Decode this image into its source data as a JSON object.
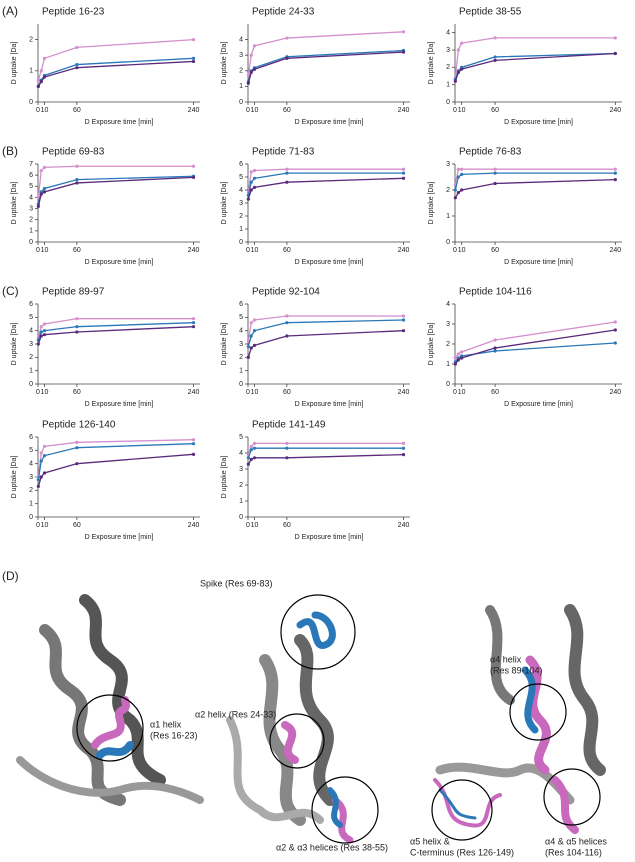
{
  "panel_labels": [
    "(A)",
    "(B)",
    "(C)",
    "(D)"
  ],
  "chart_data": [
    {
      "type": "line",
      "title": "Peptide 16-23",
      "xlabel": "D Exposure time [min]",
      "ylabel": "D uptake [Da]",
      "x": [
        0.5,
        5,
        10,
        60,
        240
      ],
      "xlim": [
        0,
        250
      ],
      "xticks": [
        0,
        10,
        60,
        240
      ],
      "ylim": [
        0,
        2.5
      ],
      "yticks": [
        0,
        1,
        2
      ],
      "series": [
        {
          "color": "#d48fcc",
          "values": [
            0.7,
            1.0,
            1.4,
            1.75,
            2.0
          ]
        },
        {
          "color": "#2a78b8",
          "values": [
            0.5,
            0.7,
            0.85,
            1.2,
            1.4
          ]
        },
        {
          "color": "#5a2a7c",
          "values": [
            0.5,
            0.65,
            0.8,
            1.1,
            1.3
          ]
        }
      ]
    },
    {
      "type": "line",
      "title": "Peptide 24-33",
      "xlabel": "D Exposure time [min]",
      "ylabel": "D uptake [Da]",
      "x": [
        0.5,
        5,
        10,
        60,
        240
      ],
      "xlim": [
        0,
        250
      ],
      "xticks": [
        0,
        10,
        60,
        240
      ],
      "ylim": [
        0,
        5
      ],
      "yticks": [
        0,
        1,
        2,
        3,
        4
      ],
      "series": [
        {
          "color": "#d48fcc",
          "values": [
            1.7,
            3.0,
            3.6,
            4.1,
            4.5
          ]
        },
        {
          "color": "#2a78b8",
          "values": [
            1.3,
            2.0,
            2.2,
            2.9,
            3.3
          ]
        },
        {
          "color": "#5a2a7c",
          "values": [
            1.2,
            1.9,
            2.1,
            2.8,
            3.2
          ]
        }
      ]
    },
    {
      "type": "line",
      "title": "Peptide 38-55",
      "xlabel": "D Exposure time [min]",
      "ylabel": "D uptake [Da]",
      "x": [
        0.5,
        5,
        10,
        60,
        240
      ],
      "xlim": [
        0,
        250
      ],
      "xticks": [
        0,
        10,
        60,
        240
      ],
      "ylim": [
        0,
        4.5
      ],
      "yticks": [
        0,
        1,
        2,
        3,
        4
      ],
      "series": [
        {
          "color": "#d48fcc",
          "values": [
            1.4,
            3.0,
            3.4,
            3.7,
            3.7
          ]
        },
        {
          "color": "#2a78b8",
          "values": [
            1.3,
            1.8,
            2.0,
            2.6,
            2.8
          ]
        },
        {
          "color": "#5a2a7c",
          "values": [
            1.2,
            1.7,
            1.9,
            2.4,
            2.8
          ]
        }
      ]
    },
    {
      "type": "line",
      "title": "Peptide 69-83",
      "xlabel": "D Exposure time [min]",
      "ylabel": "D uptake [Da]",
      "x": [
        0.5,
        5,
        10,
        60,
        240
      ],
      "xlim": [
        0,
        250
      ],
      "xticks": [
        0,
        10,
        60,
        240
      ],
      "ylim": [
        0,
        7
      ],
      "yticks": [
        0,
        1,
        2,
        3,
        4,
        5,
        6,
        7
      ],
      "series": [
        {
          "color": "#d48fcc",
          "values": [
            4.0,
            6.4,
            6.7,
            6.8,
            6.8
          ]
        },
        {
          "color": "#2a78b8",
          "values": [
            3.4,
            4.5,
            4.8,
            5.6,
            5.9
          ]
        },
        {
          "color": "#5a2a7c",
          "values": [
            3.2,
            4.3,
            4.5,
            5.3,
            5.8
          ]
        }
      ]
    },
    {
      "type": "line",
      "title": "Peptide 71-83",
      "xlabel": "D Exposure time [min]",
      "ylabel": "D uptake [Da]",
      "x": [
        0.5,
        5,
        10,
        60,
        240
      ],
      "xlim": [
        0,
        250
      ],
      "xticks": [
        0,
        10,
        60,
        240
      ],
      "ylim": [
        0,
        6
      ],
      "yticks": [
        0,
        1,
        2,
        3,
        4,
        5,
        6
      ],
      "series": [
        {
          "color": "#d48fcc",
          "values": [
            3.8,
            5.4,
            5.5,
            5.6,
            5.6
          ]
        },
        {
          "color": "#2a78b8",
          "values": [
            3.6,
            4.6,
            4.9,
            5.3,
            5.3
          ]
        },
        {
          "color": "#5a2a7c",
          "values": [
            3.3,
            4.0,
            4.2,
            4.6,
            4.9
          ]
        }
      ]
    },
    {
      "type": "line",
      "title": "Peptide 76-83",
      "xlabel": "D Exposure time [min]",
      "ylabel": "D uptake [Da]",
      "x": [
        0.5,
        5,
        10,
        60,
        240
      ],
      "xlim": [
        0,
        250
      ],
      "xticks": [
        0,
        10,
        60,
        240
      ],
      "ylim": [
        0,
        3
      ],
      "yticks": [
        0,
        1,
        2,
        3
      ],
      "series": [
        {
          "color": "#d48fcc",
          "values": [
            2.2,
            2.8,
            2.8,
            2.8,
            2.8
          ]
        },
        {
          "color": "#2a78b8",
          "values": [
            2.0,
            2.5,
            2.6,
            2.65,
            2.65
          ]
        },
        {
          "color": "#5a2a7c",
          "values": [
            1.7,
            1.9,
            2.0,
            2.25,
            2.4
          ]
        }
      ]
    },
    {
      "type": "line",
      "title": "Peptide 89-97",
      "xlabel": "D Exposure time [min]",
      "ylabel": "D uptake [Da]",
      "x": [
        0.5,
        5,
        10,
        60,
        240
      ],
      "xlim": [
        0,
        250
      ],
      "xticks": [
        0,
        10,
        60,
        240
      ],
      "ylim": [
        0,
        6
      ],
      "yticks": [
        0,
        1,
        2,
        3,
        4,
        5,
        6
      ],
      "series": [
        {
          "color": "#d48fcc",
          "values": [
            3.5,
            4.3,
            4.5,
            4.9,
            4.9
          ]
        },
        {
          "color": "#2a78b8",
          "values": [
            3.3,
            3.9,
            4.0,
            4.3,
            4.6
          ]
        },
        {
          "color": "#5a2a7c",
          "values": [
            3.0,
            3.6,
            3.7,
            3.9,
            4.3
          ]
        }
      ]
    },
    {
      "type": "line",
      "title": "Peptide 92-104",
      "xlabel": "D Exposure time [min]",
      "ylabel": "D uptake [Da]",
      "x": [
        0.5,
        5,
        10,
        60,
        240
      ],
      "xlim": [
        0,
        250
      ],
      "xticks": [
        0,
        10,
        60,
        240
      ],
      "ylim": [
        0,
        6
      ],
      "yticks": [
        0,
        1,
        2,
        3,
        4,
        5,
        6
      ],
      "series": [
        {
          "color": "#d48fcc",
          "values": [
            3.2,
            4.6,
            4.8,
            5.1,
            5.1
          ]
        },
        {
          "color": "#2a78b8",
          "values": [
            2.8,
            3.6,
            4.0,
            4.6,
            4.8
          ]
        },
        {
          "color": "#5a2a7c",
          "values": [
            2.0,
            2.7,
            2.9,
            3.6,
            4.0
          ]
        }
      ]
    },
    {
      "type": "line",
      "title": "Peptide 104-116",
      "xlabel": "D Exposure time [min]",
      "ylabel": "D uptake [Da]",
      "x": [
        0.5,
        5,
        10,
        60,
        240
      ],
      "xlim": [
        0,
        250
      ],
      "xticks": [
        0,
        10,
        60,
        240
      ],
      "ylim": [
        0,
        4
      ],
      "yticks": [
        0,
        1,
        2,
        3,
        4
      ],
      "series": [
        {
          "color": "#d48fcc",
          "values": [
            1.3,
            1.5,
            1.6,
            2.2,
            3.1
          ]
        },
        {
          "color": "#2a78b8",
          "values": [
            1.1,
            1.3,
            1.4,
            1.65,
            2.05
          ]
        },
        {
          "color": "#5a2a7c",
          "values": [
            1.0,
            1.2,
            1.3,
            1.8,
            2.7
          ]
        }
      ]
    },
    {
      "type": "line",
      "title": "Peptide 126-140",
      "xlabel": "D Exposure time [min]",
      "ylabel": "D uptake [Da]",
      "x": [
        0.5,
        5,
        10,
        60,
        240
      ],
      "xlim": [
        0,
        250
      ],
      "xticks": [
        0,
        10,
        60,
        240
      ],
      "ylim": [
        0,
        6
      ],
      "yticks": [
        0,
        1,
        2,
        3,
        4,
        5,
        6
      ],
      "series": [
        {
          "color": "#d48fcc",
          "values": [
            3.0,
            4.8,
            5.3,
            5.6,
            5.8
          ]
        },
        {
          "color": "#2a78b8",
          "values": [
            2.8,
            4.2,
            4.6,
            5.2,
            5.5
          ]
        },
        {
          "color": "#5a2a7c",
          "values": [
            2.3,
            3.0,
            3.3,
            4.0,
            4.7
          ]
        }
      ]
    },
    {
      "type": "line",
      "title": "Peptide 141-149",
      "xlabel": "D Exposure time [min]",
      "ylabel": "D uptake [Da]",
      "x": [
        0.5,
        5,
        10,
        60,
        240
      ],
      "xlim": [
        0,
        250
      ],
      "xticks": [
        0,
        10,
        60,
        240
      ],
      "ylim": [
        0,
        5
      ],
      "yticks": [
        0,
        1,
        2,
        3,
        4,
        5
      ],
      "series": [
        {
          "color": "#d48fcc",
          "values": [
            3.9,
            4.4,
            4.6,
            4.6,
            4.6
          ]
        },
        {
          "color": "#2a78b8",
          "values": [
            3.7,
            4.2,
            4.3,
            4.3,
            4.3
          ]
        },
        {
          "color": "#5a2a7c",
          "values": [
            3.3,
            3.6,
            3.7,
            3.7,
            3.9
          ]
        }
      ]
    }
  ],
  "structure_labels": [
    [
      "α1 helix",
      "(Res 16-23)"
    ],
    [
      "Spike (Res 69-83)"
    ],
    [
      "α2 helix (Res 24-33)"
    ],
    [
      "α2 & α3 helices (Res 38-55)"
    ],
    [
      "α4 helix",
      "(Res 89-104)"
    ],
    [
      "α5 helix &",
      "C-terminus (Res 126-149)"
    ],
    [
      "α4 & α5 helices",
      "(Res 104-116)"
    ]
  ]
}
